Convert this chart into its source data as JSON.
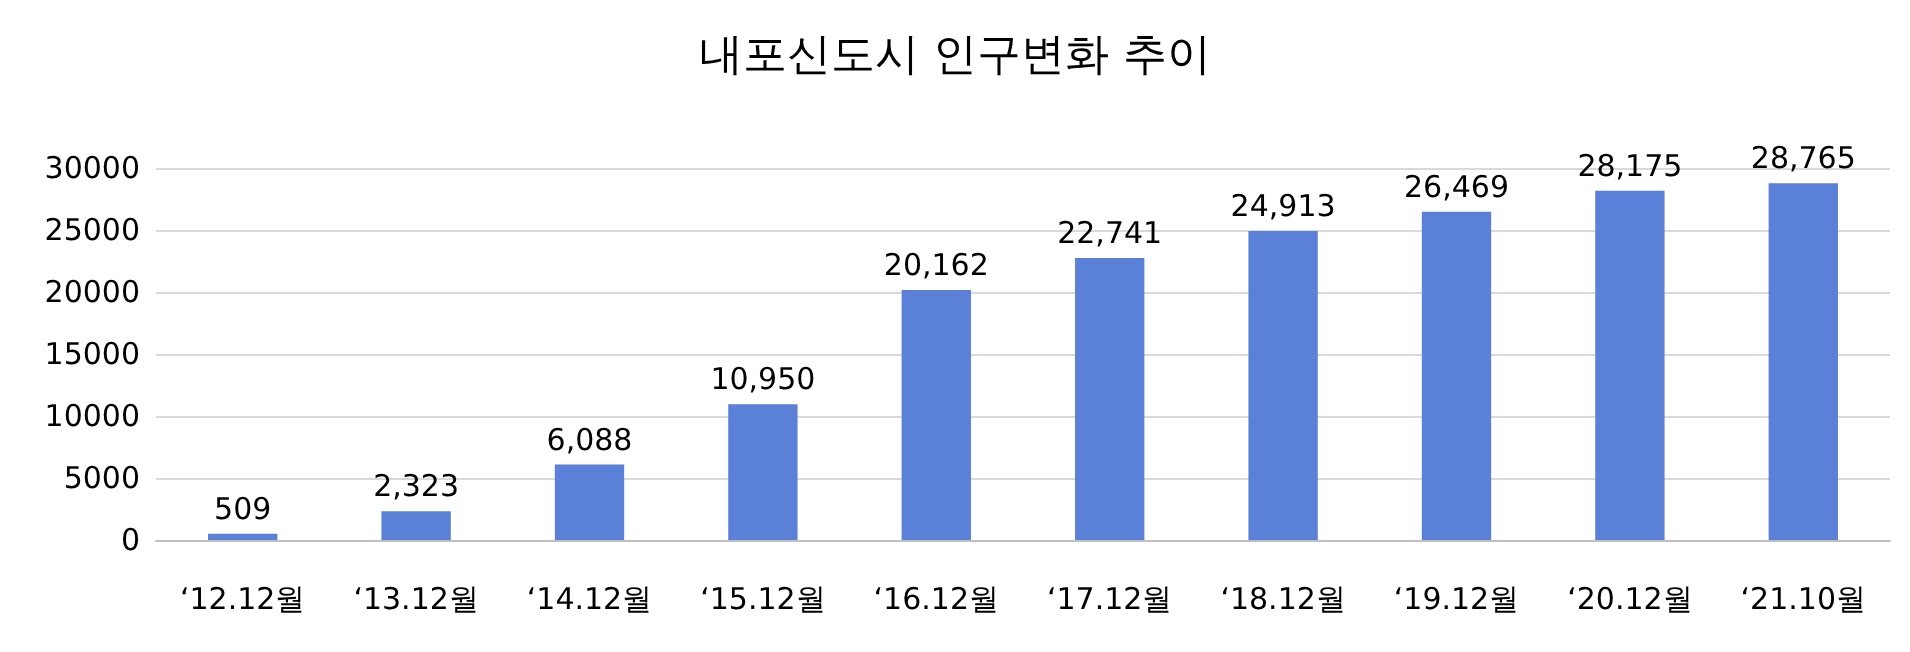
{
  "chart_data": {
    "type": "bar",
    "title": "내포신도시 인구변화 추이",
    "categories": [
      "‘12.12월",
      "‘13.12월",
      "‘14.12월",
      "‘15.12월",
      "‘16.12월",
      "‘17.12월",
      "‘18.12월",
      "‘19.12월",
      "‘20.12월",
      "‘21.10월"
    ],
    "values": [
      509,
      2323,
      6088,
      10950,
      20162,
      22741,
      24913,
      26469,
      28175,
      28765
    ],
    "value_labels": [
      "509",
      "2,323",
      "6,088",
      "10,950",
      "20,162",
      "22,741",
      "24,913",
      "26,469",
      "28,175",
      "28,765"
    ],
    "color": "#5b80d8",
    "ylim": [
      0,
      30000
    ],
    "yticks": [
      0,
      5000,
      10000,
      15000,
      20000,
      25000,
      30000
    ],
    "grid": true
  }
}
